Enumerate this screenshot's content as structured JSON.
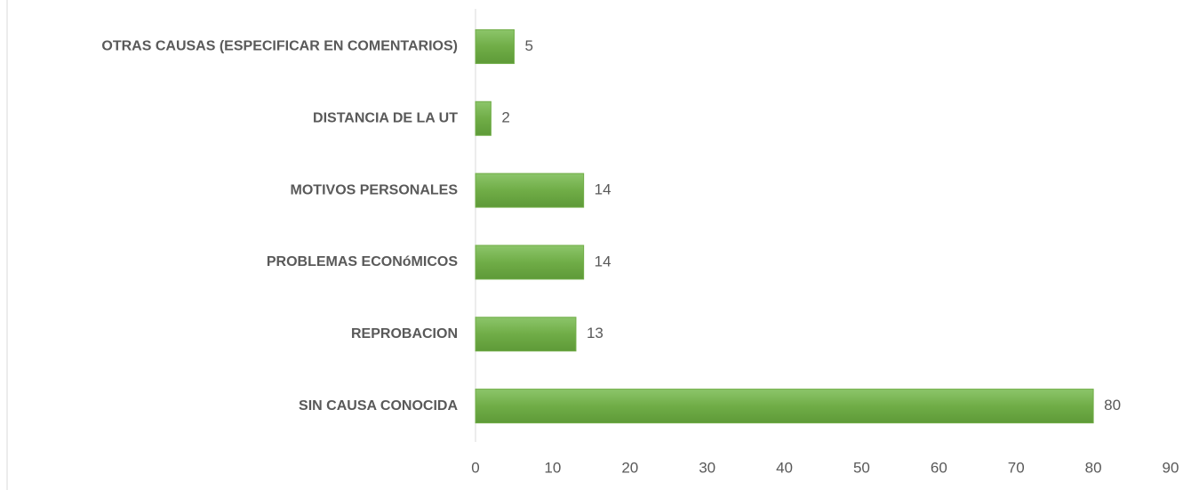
{
  "chart_data": {
    "type": "bar",
    "orientation": "horizontal",
    "categories": [
      "OTRAS CAUSAS (ESPECIFICAR EN COMENTARIOS)",
      "DISTANCIA DE LA UT",
      "MOTIVOS PERSONALES",
      "PROBLEMAS ECONóMICOS",
      "REPROBACION",
      "SIN CAUSA CONOCIDA"
    ],
    "values": [
      5,
      2,
      14,
      14,
      13,
      80
    ],
    "color": "#70ad47",
    "xlim": [
      0,
      90
    ],
    "xticks": [
      0,
      10,
      20,
      30,
      40,
      50,
      60,
      70,
      80,
      90
    ],
    "grid": false
  }
}
